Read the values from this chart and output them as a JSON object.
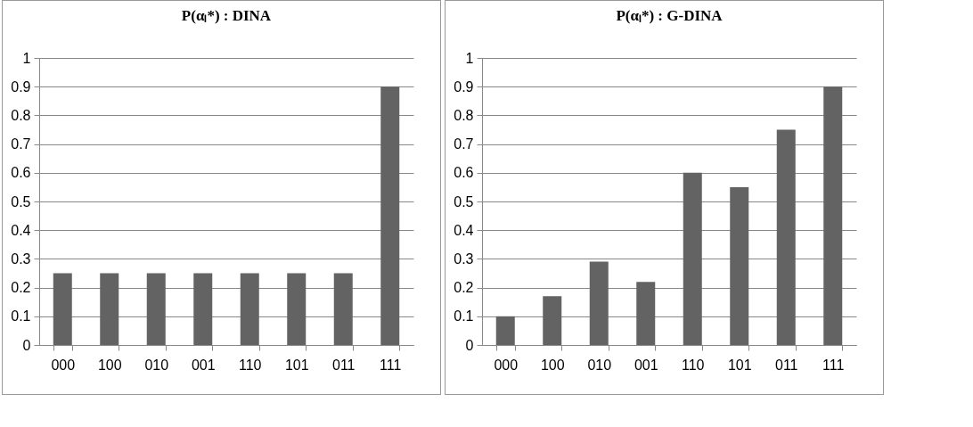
{
  "chart_data": [
    {
      "type": "bar",
      "title": "P(αₗ*) : DINA",
      "categories": [
        "000",
        "100",
        "010",
        "001",
        "110",
        "101",
        "011",
        "111"
      ],
      "values": [
        0.25,
        0.25,
        0.25,
        0.25,
        0.25,
        0.25,
        0.25,
        0.9
      ],
      "color": "#636363",
      "ylim": [
        0,
        1
      ],
      "yticks": [
        0,
        0.1,
        0.2,
        0.3,
        0.4,
        0.5,
        0.6,
        0.7,
        0.8,
        0.9,
        1
      ],
      "grid": "y"
    },
    {
      "type": "bar",
      "title": "P(αₗ*) : G-DINA",
      "categories": [
        "000",
        "100",
        "010",
        "001",
        "110",
        "101",
        "011",
        "111"
      ],
      "values": [
        0.1,
        0.17,
        0.29,
        0.22,
        0.6,
        0.55,
        0.75,
        0.9
      ],
      "color": "#636363",
      "ylim": [
        0,
        1
      ],
      "yticks": [
        0,
        0.1,
        0.2,
        0.3,
        0.4,
        0.5,
        0.6,
        0.7,
        0.8,
        0.9,
        1
      ],
      "grid": "y"
    }
  ]
}
